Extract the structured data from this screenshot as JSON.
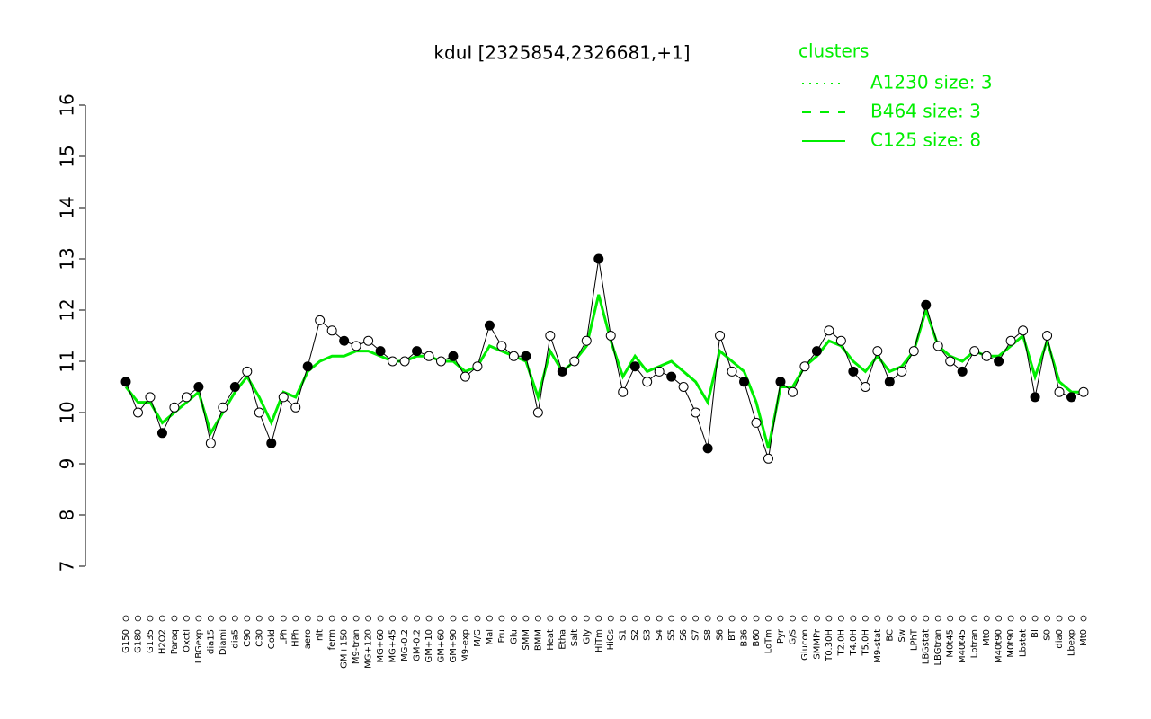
{
  "chart_data": {
    "type": "line",
    "title": "kduI [2325854,2326681,+1]",
    "categories": [
      "G150",
      "G180",
      "G135",
      "H2O2",
      "Paraq",
      "Oxctl",
      "LBGexp",
      "dia15",
      "Diami",
      "dia5",
      "C90",
      "C30",
      "Cold",
      "LPh",
      "HPh",
      "aero",
      "nit",
      "ferm",
      "GM+150",
      "M9-tran",
      "MG+120",
      "MG+60",
      "MG+45",
      "MG-0.2",
      "GM-0.2",
      "GM+10",
      "GM+60",
      "GM+90",
      "M9-exp",
      "M/G",
      "Mal",
      "Fru",
      "Glu",
      "SMM",
      "BMM",
      "Heat",
      "Etha",
      "Salt",
      "Gly",
      "HiTm",
      "HiOs",
      "S1",
      "S2",
      "S3",
      "S4",
      "S5",
      "S6",
      "S7",
      "S8",
      "S6",
      "BT",
      "B36",
      "B60",
      "LoTm",
      "Pyr",
      "G/S",
      "Glucon",
      "SMMPr",
      "T0.30H",
      "T2.0H",
      "T4.0H",
      "T5.0H",
      "M9-stat",
      "BC",
      "Sw",
      "LPhT",
      "LBGstat",
      "LBGtran",
      "M0t45",
      "M40t45",
      "Lbtran",
      "Mt0",
      "M40t90",
      "M0t90",
      "Lbstat",
      "BI",
      "S0",
      "dia0",
      "Lbexp",
      "Mt0"
    ],
    "values": [
      10.6,
      10.0,
      10.3,
      9.6,
      10.1,
      10.3,
      10.5,
      9.4,
      10.1,
      10.5,
      10.8,
      10.0,
      9.4,
      10.3,
      10.1,
      10.9,
      11.8,
      11.6,
      11.4,
      11.3,
      11.4,
      11.2,
      11.0,
      11.0,
      11.2,
      11.1,
      11.0,
      11.1,
      10.7,
      10.9,
      11.7,
      11.3,
      11.1,
      11.1,
      10.0,
      11.5,
      10.8,
      11.0,
      11.4,
      13.0,
      11.5,
      10.4,
      10.9,
      10.6,
      10.8,
      10.7,
      10.5,
      10.0,
      9.3,
      11.5,
      10.8,
      10.6,
      9.8,
      9.1,
      10.6,
      10.4,
      10.9,
      11.2,
      11.6,
      11.4,
      10.8,
      10.5,
      11.2,
      10.6,
      10.8,
      11.2,
      12.1,
      11.3,
      11.0,
      10.8,
      11.2,
      11.1,
      11.0,
      11.4,
      11.6,
      10.3,
      11.5,
      10.4,
      10.3,
      10.4
    ],
    "color": "#000000",
    "series": [
      {
        "name": "C125 size: 8",
        "color": "#00ee00",
        "values": [
          10.5,
          10.2,
          10.2,
          9.8,
          10.0,
          10.2,
          10.4,
          9.6,
          10.0,
          10.4,
          10.7,
          10.3,
          9.8,
          10.4,
          10.3,
          10.8,
          11.0,
          11.1,
          11.1,
          11.2,
          11.2,
          11.1,
          11.0,
          11.0,
          11.1,
          11.1,
          11.0,
          11.0,
          10.8,
          10.9,
          11.3,
          11.2,
          11.1,
          11.0,
          10.3,
          11.2,
          10.8,
          11.0,
          11.3,
          12.3,
          11.4,
          10.7,
          11.1,
          10.8,
          10.9,
          11.0,
          10.8,
          10.6,
          10.2,
          11.2,
          11.0,
          10.8,
          10.2,
          9.3,
          10.5,
          10.5,
          10.9,
          11.1,
          11.4,
          11.3,
          11.0,
          10.8,
          11.1,
          10.8,
          10.9,
          11.2,
          12.0,
          11.3,
          11.1,
          11.0,
          11.2,
          11.1,
          11.1,
          11.3,
          11.5,
          10.7,
          11.4,
          10.6,
          10.4,
          10.4
        ]
      }
    ],
    "ylim": [
      7,
      16
    ],
    "yticks": [
      7,
      8,
      9,
      10,
      11,
      12,
      13,
      14,
      15,
      16
    ],
    "legend": {
      "title": "clusters",
      "entries": [
        {
          "label": "A1230 size: 3",
          "dash": "2,6"
        },
        {
          "label": "B464 size: 3",
          "dash": "10,10"
        }
      ],
      "color": "#00ee00"
    }
  }
}
